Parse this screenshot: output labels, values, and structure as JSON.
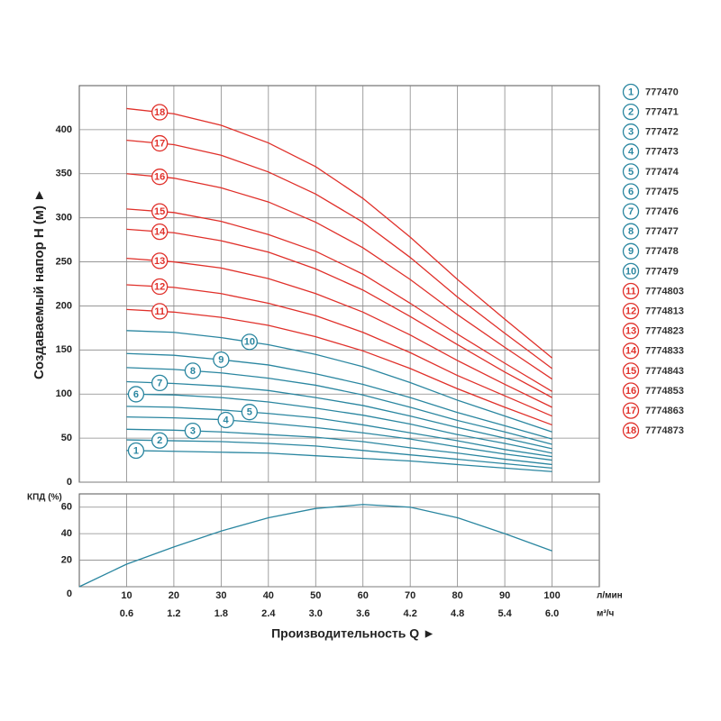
{
  "chart_data": [
    {
      "type": "line",
      "ylabel": "Создаваемый напор H (м) ►",
      "x": [
        10,
        20,
        30,
        40,
        50,
        60,
        70,
        80,
        90,
        100
      ],
      "xlim": [
        0,
        110
      ],
      "xticks": [
        10,
        20,
        30,
        40,
        50,
        60,
        70,
        80,
        90,
        100
      ],
      "ylim": [
        0,
        450
      ],
      "yticks": [
        0,
        50,
        100,
        150,
        200,
        250,
        300,
        350,
        400
      ],
      "grid": true,
      "series": [
        {
          "name": "777470",
          "label": "1",
          "color": "#2a86a0",
          "values": [
            36,
            35,
            34,
            33,
            30,
            27,
            24,
            20,
            16,
            12
          ]
        },
        {
          "name": "777471",
          "label": "2",
          "color": "#2a86a0",
          "values": [
            48,
            47,
            46,
            44,
            41,
            36,
            31,
            26,
            21,
            16
          ]
        },
        {
          "name": "777472",
          "label": "3",
          "color": "#2a86a0",
          "values": [
            60,
            59,
            57,
            54,
            51,
            46,
            39,
            33,
            26,
            20
          ]
        },
        {
          "name": "777473",
          "label": "4",
          "color": "#2a86a0",
          "values": [
            74,
            73,
            71,
            67,
            62,
            56,
            49,
            40,
            32,
            25
          ]
        },
        {
          "name": "777474",
          "label": "5",
          "color": "#2a86a0",
          "values": [
            86,
            85,
            82,
            78,
            73,
            65,
            56,
            47,
            37,
            29
          ]
        },
        {
          "name": "777475",
          "label": "6",
          "color": "#2a86a0",
          "values": [
            100,
            99,
            96,
            91,
            84,
            76,
            66,
            54,
            44,
            33
          ]
        },
        {
          "name": "777476",
          "label": "7",
          "color": "#2a86a0",
          "values": [
            114,
            112,
            109,
            104,
            96,
            87,
            75,
            62,
            50,
            38
          ]
        },
        {
          "name": "777477",
          "label": "8",
          "color": "#2a86a0",
          "values": [
            130,
            128,
            124,
            118,
            110,
            99,
            85,
            70,
            57,
            43
          ]
        },
        {
          "name": "777478",
          "label": "9",
          "color": "#2a86a0",
          "values": [
            146,
            144,
            139,
            133,
            123,
            111,
            96,
            79,
            64,
            49
          ]
        },
        {
          "name": "777479",
          "label": "10",
          "color": "#2a86a0",
          "values": [
            172,
            170,
            164,
            156,
            145,
            131,
            113,
            93,
            75,
            57
          ]
        },
        {
          "name": "7774803",
          "label": "11",
          "color": "#e0302a",
          "values": [
            196,
            193,
            187,
            178,
            165,
            149,
            129,
            106,
            85,
            65
          ]
        },
        {
          "name": "7774813",
          "label": "12",
          "color": "#e0302a",
          "values": [
            224,
            221,
            214,
            203,
            189,
            170,
            147,
            121,
            98,
            75
          ]
        },
        {
          "name": "7774823",
          "label": "13",
          "color": "#e0302a",
          "values": [
            254,
            250,
            243,
            231,
            214,
            193,
            167,
            138,
            111,
            85
          ]
        },
        {
          "name": "7774833",
          "label": "14",
          "color": "#e0302a",
          "values": [
            287,
            283,
            274,
            261,
            242,
            218,
            188,
            156,
            125,
            96
          ]
        },
        {
          "name": "7774843",
          "label": "15",
          "color": "#e0302a",
          "values": [
            310,
            306,
            296,
            281,
            262,
            236,
            203,
            168,
            135,
            103
          ]
        },
        {
          "name": "7774853",
          "label": "16",
          "color": "#e0302a",
          "values": [
            350,
            345,
            334,
            318,
            295,
            266,
            230,
            190,
            153,
            117
          ]
        },
        {
          "name": "7774863",
          "label": "17",
          "color": "#e0302a",
          "values": [
            388,
            383,
            371,
            352,
            327,
            295,
            255,
            210,
            169,
            129
          ]
        },
        {
          "name": "7774873",
          "label": "18",
          "color": "#e0302a",
          "values": [
            424,
            418,
            405,
            385,
            358,
            322,
            278,
            230,
            185,
            141
          ]
        }
      ]
    },
    {
      "type": "line",
      "ylabel": "КПД (%)",
      "xlabel": "Производительность Q ►",
      "xunit": "л/мин",
      "x2unit": "м³/ч",
      "x": [
        0,
        10,
        20,
        30,
        40,
        50,
        60,
        70,
        80,
        90,
        100
      ],
      "xlim": [
        0,
        110
      ],
      "xticks": [
        10,
        20,
        30,
        40,
        50,
        60,
        70,
        80,
        90,
        100
      ],
      "x2ticks": [
        {
          "value": 10,
          "label": "0.6"
        },
        {
          "value": 20,
          "label": "1.2"
        },
        {
          "value": 30,
          "label": "1.8"
        },
        {
          "value": 40,
          "label": "2.4"
        },
        {
          "value": 50,
          "label": "3.0"
        },
        {
          "value": 60,
          "label": "3.6"
        },
        {
          "value": 70,
          "label": "4.2"
        },
        {
          "value": 80,
          "label": "4.8"
        },
        {
          "value": 90,
          "label": "5.4"
        },
        {
          "value": 100,
          "label": "6.0"
        }
      ],
      "ylim": [
        0,
        70
      ],
      "yticks": [
        0,
        20,
        40,
        60
      ],
      "grid": true,
      "color": "#2a86a0",
      "values": [
        0,
        17,
        30,
        42,
        52,
        59,
        62,
        60,
        52,
        40,
        27
      ]
    }
  ]
}
